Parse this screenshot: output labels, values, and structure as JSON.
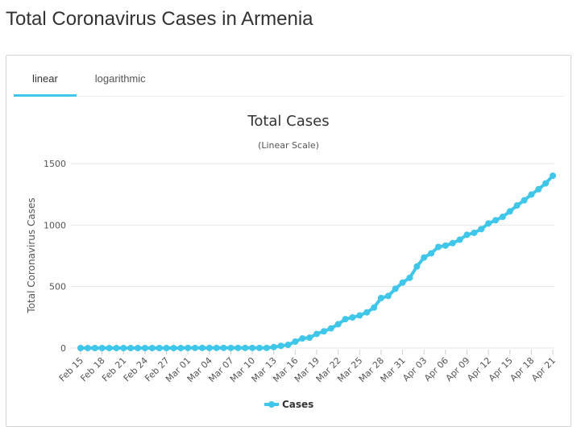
{
  "page": {
    "title": "Total Coronavirus Cases in Armenia"
  },
  "tabs": [
    {
      "label": "linear",
      "active": true
    },
    {
      "label": "logarithmic",
      "active": false
    }
  ],
  "colors": {
    "series": "#3fc6e8",
    "accent": "#3fc6e8"
  },
  "chart_data": {
    "type": "line",
    "title": "Total Cases",
    "subtitle": "(Linear Scale)",
    "xlabel": "",
    "ylabel": "Total Coronavirus Cases",
    "ylim": [
      0,
      1500
    ],
    "yticks": [
      0,
      500,
      1000,
      1500
    ],
    "grid": true,
    "legend": "bottom-center",
    "xtick_labels": [
      "Feb 15",
      "Feb 18",
      "Feb 21",
      "Feb 24",
      "Feb 27",
      "Mar 01",
      "Mar 04",
      "Mar 07",
      "Mar 10",
      "Mar 13",
      "Mar 16",
      "Mar 19",
      "Mar 22",
      "Mar 25",
      "Mar 28",
      "Mar 31",
      "Apr 03",
      "Apr 06",
      "Apr 09",
      "Apr 12",
      "Apr 15",
      "Apr 18",
      "Apr 21"
    ],
    "x": [
      "Feb 15",
      "Feb 16",
      "Feb 17",
      "Feb 18",
      "Feb 19",
      "Feb 20",
      "Feb 21",
      "Feb 22",
      "Feb 23",
      "Feb 24",
      "Feb 25",
      "Feb 26",
      "Feb 27",
      "Feb 28",
      "Feb 29",
      "Mar 01",
      "Mar 02",
      "Mar 03",
      "Mar 04",
      "Mar 05",
      "Mar 06",
      "Mar 07",
      "Mar 08",
      "Mar 09",
      "Mar 10",
      "Mar 11",
      "Mar 12",
      "Mar 13",
      "Mar 14",
      "Mar 15",
      "Mar 16",
      "Mar 17",
      "Mar 18",
      "Mar 19",
      "Mar 20",
      "Mar 21",
      "Mar 22",
      "Mar 23",
      "Mar 24",
      "Mar 25",
      "Mar 26",
      "Mar 27",
      "Mar 28",
      "Mar 29",
      "Mar 30",
      "Mar 31",
      "Apr 01",
      "Apr 02",
      "Apr 03",
      "Apr 04",
      "Apr 05",
      "Apr 06",
      "Apr 07",
      "Apr 08",
      "Apr 09",
      "Apr 10",
      "Apr 11",
      "Apr 12",
      "Apr 13",
      "Apr 14",
      "Apr 15",
      "Apr 16",
      "Apr 17",
      "Apr 18",
      "Apr 19",
      "Apr 20",
      "Apr 21"
    ],
    "series": [
      {
        "name": "Cases",
        "values": [
          0,
          0,
          0,
          0,
          0,
          0,
          0,
          0,
          0,
          0,
          0,
          0,
          0,
          0,
          0,
          1,
          1,
          1,
          1,
          1,
          1,
          1,
          1,
          1,
          1,
          1,
          1,
          8,
          18,
          26,
          52,
          78,
          84,
          115,
          136,
          160,
          194,
          235,
          249,
          265,
          290,
          329,
          407,
          424,
          482,
          532,
          571,
          663,
          736,
          770,
          822,
          833,
          853,
          881,
          921,
          937,
          967,
          1013,
          1039,
          1067,
          1111,
          1159,
          1201,
          1248,
          1291,
          1339,
          1401
        ]
      }
    ]
  }
}
